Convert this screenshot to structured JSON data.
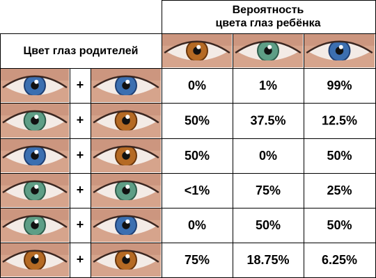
{
  "header": {
    "title": [
      "Вероятность",
      "цвета глаз ребёнка"
    ],
    "parents_label": "Цвет глаз родителей"
  },
  "rows": [
    {
      "plus": "+",
      "probabilities": [
        "0%",
        "1%",
        "99%"
      ]
    },
    {
      "plus": "+",
      "probabilities": [
        "50%",
        "37.5%",
        "12.5%"
      ]
    },
    {
      "plus": "+",
      "probabilities": [
        "50%",
        "0%",
        "50%"
      ]
    },
    {
      "plus": "+",
      "probabilities": [
        "<1%",
        "75%",
        "25%"
      ]
    },
    {
      "plus": "+",
      "probabilities": [
        "0%",
        "50%",
        "50%"
      ]
    },
    {
      "plus": "+",
      "probabilities": [
        "75%",
        "18.75%",
        "6.25%"
      ]
    }
  ]
}
